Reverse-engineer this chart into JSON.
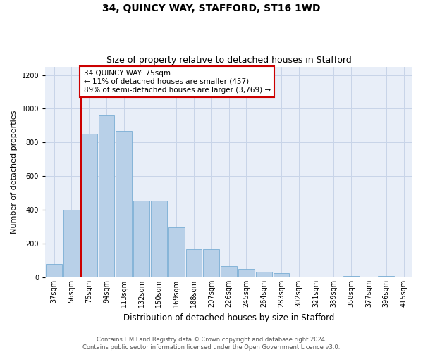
{
  "title": "34, QUINCY WAY, STAFFORD, ST16 1WD",
  "subtitle": "Size of property relative to detached houses in Stafford",
  "xlabel": "Distribution of detached houses by size in Stafford",
  "ylabel": "Number of detached properties",
  "categories": [
    "37sqm",
    "56sqm",
    "75sqm",
    "94sqm",
    "113sqm",
    "132sqm",
    "150sqm",
    "169sqm",
    "188sqm",
    "207sqm",
    "226sqm",
    "245sqm",
    "264sqm",
    "283sqm",
    "302sqm",
    "321sqm",
    "339sqm",
    "358sqm",
    "377sqm",
    "396sqm",
    "415sqm"
  ],
  "values": [
    80,
    400,
    850,
    960,
    870,
    455,
    455,
    295,
    165,
    165,
    65,
    50,
    32,
    25,
    5,
    0,
    0,
    7,
    0,
    7,
    0
  ],
  "bar_color": "#b8d0e8",
  "bar_edge_color": "#7aadd4",
  "highlight_index": 2,
  "highlight_line_color": "#cc0000",
  "annotation_text": "34 QUINCY WAY: 75sqm\n← 11% of detached houses are smaller (457)\n89% of semi-detached houses are larger (3,769) →",
  "annotation_box_color": "#ffffff",
  "annotation_box_edge_color": "#cc0000",
  "ylim": [
    0,
    1250
  ],
  "yticks": [
    0,
    200,
    400,
    600,
    800,
    1000,
    1200
  ],
  "background_color": "#ffffff",
  "axes_bg_color": "#e8eef8",
  "grid_color": "#c8d4e8",
  "footer_text": "Contains HM Land Registry data © Crown copyright and database right 2024.\nContains public sector information licensed under the Open Government Licence v3.0.",
  "title_fontsize": 10,
  "subtitle_fontsize": 9,
  "xlabel_fontsize": 8.5,
  "ylabel_fontsize": 8,
  "tick_fontsize": 7,
  "annotation_fontsize": 7.5,
  "footer_fontsize": 6
}
